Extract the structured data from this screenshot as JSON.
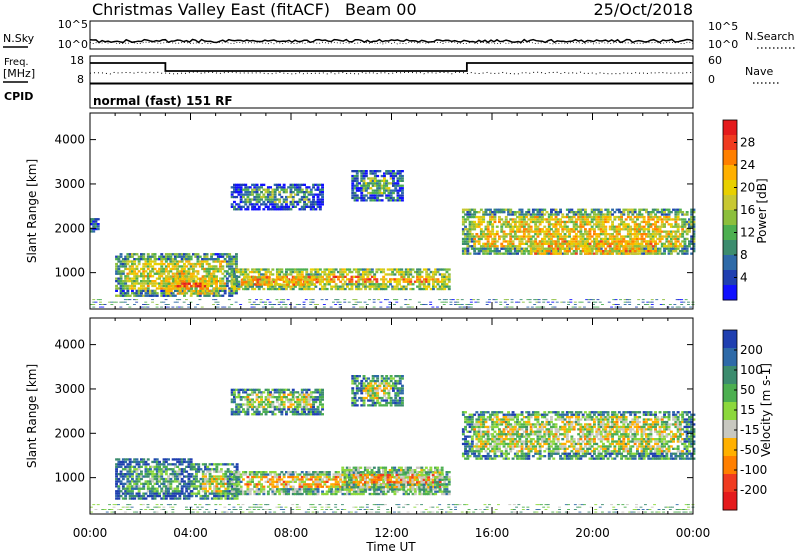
{
  "header": {
    "title": "Christmas Valley East (fitACF)",
    "beam": "Beam 00",
    "date": "25/Oct/2018"
  },
  "nsky_panel": {
    "left_label": "N.Sky",
    "right_label": "N.Search",
    "left_ticks": [
      "10^5",
      "10^0"
    ],
    "right_ticks": [
      "10^5",
      "10^0"
    ]
  },
  "freq_panel": {
    "left_label_1": "Freq.",
    "left_label_2": "[MHz]",
    "right_label": "Nave",
    "left_ticks": [
      "18",
      "8"
    ],
    "right_ticks": [
      "60",
      "0"
    ],
    "cpid_label": "CPID",
    "cpid_text": "normal (fast) 151 RF"
  },
  "chart_data": [
    {
      "type": "heatmap",
      "title": "",
      "xlabel": "Time UT",
      "ylabel": "Slant Range [km]",
      "x_ticks": [
        "00:00",
        "04:00",
        "08:00",
        "12:00",
        "16:00",
        "20:00",
        "00:00"
      ],
      "y_ticks": [
        1000,
        2000,
        3000,
        4000
      ],
      "xlim_hours": [
        0,
        24
      ],
      "ylim_km": [
        180,
        4600
      ],
      "colorbar": {
        "label": "Power [dB]",
        "ticks": [
          "28",
          "24",
          "20",
          "16",
          "12",
          "8",
          "4"
        ],
        "colors": [
          "#e41a1c",
          "#f03b20",
          "#ff7f00",
          "#ffb000",
          "#e8d000",
          "#c8c832",
          "#8cbf3c",
          "#4caf50",
          "#3c8c6e",
          "#2e6aa8",
          "#1f3fb0",
          "#1010ff"
        ]
      },
      "regions": [
        {
          "t0": 1.0,
          "t1": 5.8,
          "r0": 450,
          "r1": 1400,
          "level": 0.55
        },
        {
          "t0": 3.0,
          "t1": 5.0,
          "r0": 500,
          "r1": 900,
          "level": 0.85
        },
        {
          "t0": 5.6,
          "t1": 14.3,
          "r0": 600,
          "r1": 1050,
          "level": 0.7
        },
        {
          "t0": 6.0,
          "t1": 9.0,
          "r0": 700,
          "r1": 900,
          "level": 0.9
        },
        {
          "t0": 5.6,
          "t1": 9.2,
          "r0": 2400,
          "r1": 3000,
          "level": 0.35
        },
        {
          "t0": 10.4,
          "t1": 12.4,
          "r0": 2600,
          "r1": 3300,
          "level": 0.4
        },
        {
          "t0": 14.8,
          "t1": 24.0,
          "r0": 1400,
          "r1": 2400,
          "level": 0.6
        },
        {
          "t0": 17.5,
          "t1": 22.5,
          "r0": 1400,
          "r1": 1700,
          "level": 0.9
        },
        {
          "t0": 0.0,
          "t1": 24.0,
          "r0": 180,
          "r1": 350,
          "level": 0.5
        },
        {
          "t0": 0.0,
          "t1": 0.3,
          "r0": 1900,
          "r1": 2200,
          "level": 0.4
        }
      ]
    },
    {
      "type": "heatmap",
      "title": "",
      "xlabel": "Time UT",
      "ylabel": "Slant Range [km]",
      "x_ticks": [
        "00:00",
        "04:00",
        "08:00",
        "12:00",
        "16:00",
        "20:00",
        "00:00"
      ],
      "y_ticks": [
        1000,
        2000,
        3000,
        4000
      ],
      "xlim_hours": [
        0,
        24
      ],
      "ylim_km": [
        180,
        4600
      ],
      "colorbar": {
        "label": "Velocity [m s-1]",
        "ticks": [
          "200",
          "100",
          "50",
          "15",
          "-15",
          "-50",
          "-100",
          "-200"
        ],
        "colors": [
          "#1f3fb0",
          "#2e6aa8",
          "#3c8c6e",
          "#4caf50",
          "#8cd83c",
          "#c8c8c0",
          "#ffb000",
          "#ff7f00",
          "#f03b20",
          "#e41a1c"
        ]
      },
      "regions": [
        {
          "t0": 1.0,
          "t1": 4.0,
          "r0": 500,
          "r1": 1400,
          "level": 0.35
        },
        {
          "t0": 4.0,
          "t1": 5.8,
          "r0": 500,
          "r1": 1300,
          "level": 0.5
        },
        {
          "t0": 5.6,
          "t1": 14.3,
          "r0": 600,
          "r1": 1150,
          "level": 0.62
        },
        {
          "t0": 10.0,
          "t1": 14.0,
          "r0": 700,
          "r1": 1200,
          "level": 0.65
        },
        {
          "t0": 5.6,
          "t1": 9.2,
          "r0": 2400,
          "r1": 3000,
          "level": 0.5
        },
        {
          "t0": 10.4,
          "t1": 12.4,
          "r0": 2600,
          "r1": 3300,
          "level": 0.5
        },
        {
          "t0": 14.8,
          "t1": 24.0,
          "r0": 1400,
          "r1": 2500,
          "level": 0.5
        },
        {
          "t0": 0.0,
          "t1": 24.0,
          "r0": 180,
          "r1": 350,
          "level": 0.6
        }
      ]
    }
  ]
}
